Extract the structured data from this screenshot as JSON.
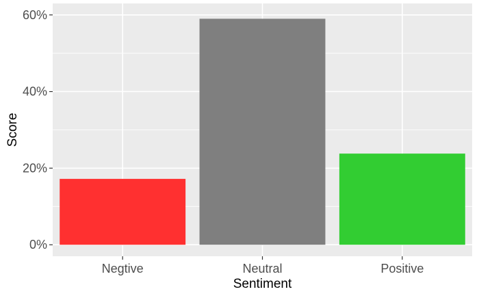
{
  "chart_data": {
    "type": "bar",
    "title": "",
    "xlabel": "Sentiment",
    "ylabel": "Score",
    "categories": [
      "Negtive",
      "Neutral",
      "Positive"
    ],
    "values": [
      0.172,
      0.59,
      0.238
    ],
    "colors": [
      "#ff3030",
      "#7f7f7f",
      "#32cd32"
    ],
    "ylim": [
      -0.03,
      0.63
    ],
    "y_ticks": [
      0,
      0.2,
      0.4,
      0.6
    ],
    "y_tick_labels": [
      "0%",
      "20%",
      "40%",
      "60%"
    ],
    "grid": true,
    "panel_background": "#ebebeb",
    "grid_color": "#ffffff",
    "legend": "none"
  }
}
